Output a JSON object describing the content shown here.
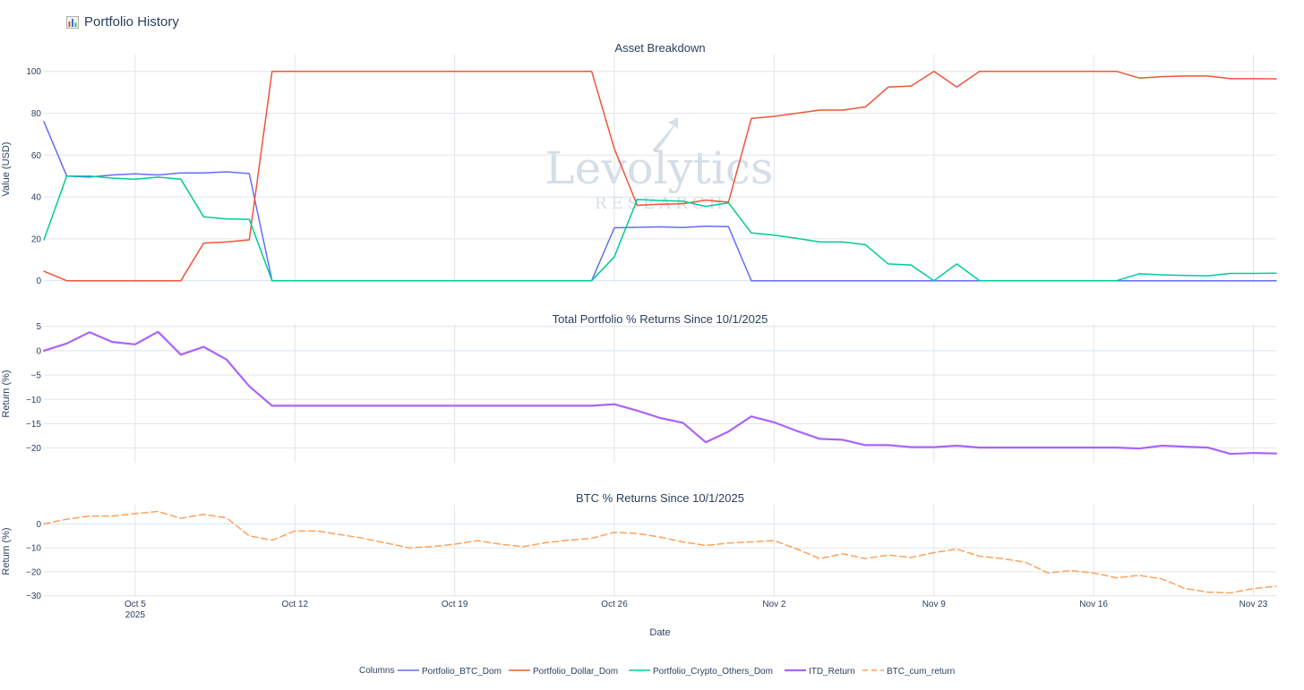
{
  "page": {
    "title": "Portfolio History",
    "icon": "bar-chart-icon"
  },
  "watermark": {
    "main": "Levolytics",
    "sub": "RESEARCH"
  },
  "legend": {
    "title": "Columns"
  },
  "x_axis": {
    "title": "Date",
    "range": [
      "2025-10-01",
      "2025-11-24"
    ],
    "ticks": [
      {
        "date": "2025-10-05",
        "label": "Oct 5",
        "sub": "2025"
      },
      {
        "date": "2025-10-12",
        "label": "Oct 12",
        "sub": ""
      },
      {
        "date": "2025-10-19",
        "label": "Oct 19",
        "sub": ""
      },
      {
        "date": "2025-10-26",
        "label": "Oct 26",
        "sub": ""
      },
      {
        "date": "2025-11-02",
        "label": "Nov 2",
        "sub": ""
      },
      {
        "date": "2025-11-09",
        "label": "Nov 9",
        "sub": ""
      },
      {
        "date": "2025-11-16",
        "label": "Nov 16",
        "sub": ""
      },
      {
        "date": "2025-11-23",
        "label": "Nov 23",
        "sub": ""
      }
    ]
  },
  "chart_data": [
    {
      "type": "line",
      "title": "Asset Breakdown",
      "xlabel": "",
      "ylabel": "Value (USD)",
      "ylim": [
        -1,
        108
      ],
      "yticks": [
        0,
        20,
        40,
        60,
        80,
        100
      ],
      "grid": true,
      "legend": "bottom",
      "series": [
        {
          "name": "Portfolio_BTC_Dom",
          "color": "#636efa",
          "dash": "solid",
          "width": 1.5,
          "x": [
            "2025-10-01",
            "2025-10-02",
            "2025-10-03",
            "2025-10-04",
            "2025-10-05",
            "2025-10-06",
            "2025-10-07",
            "2025-10-08",
            "2025-10-09",
            "2025-10-10",
            "2025-10-11",
            "2025-10-25",
            "2025-10-26",
            "2025-10-27",
            "2025-10-28",
            "2025-10-29",
            "2025-10-30",
            "2025-10-31",
            "2025-11-01",
            "2025-11-24"
          ],
          "y": [
            76,
            50,
            49.5,
            50.5,
            51,
            50.5,
            51.5,
            51.5,
            52,
            51.2,
            0,
            0,
            25.3,
            25.5,
            25.7,
            25.4,
            26,
            25.8,
            0,
            0
          ]
        },
        {
          "name": "Portfolio_Dollar_Dom",
          "color": "#ef553b",
          "dash": "solid",
          "width": 1.5,
          "x": [
            "2025-10-01",
            "2025-10-02",
            "2025-10-03",
            "2025-10-04",
            "2025-10-05",
            "2025-10-06",
            "2025-10-07",
            "2025-10-08",
            "2025-10-09",
            "2025-10-10",
            "2025-10-11",
            "2025-10-25",
            "2025-10-26",
            "2025-10-27",
            "2025-10-28",
            "2025-10-29",
            "2025-10-30",
            "2025-10-31",
            "2025-11-01",
            "2025-11-02",
            "2025-11-03",
            "2025-11-04",
            "2025-11-05",
            "2025-11-06",
            "2025-11-07",
            "2025-11-08",
            "2025-11-09",
            "2025-11-10",
            "2025-11-11",
            "2025-11-17",
            "2025-11-18",
            "2025-11-19",
            "2025-11-20",
            "2025-11-21",
            "2025-11-22",
            "2025-11-23",
            "2025-11-24"
          ],
          "y": [
            4.5,
            0,
            0,
            0,
            0,
            0,
            0,
            18,
            18.5,
            19.5,
            100,
            100,
            63,
            36,
            36.5,
            36.8,
            38.5,
            37.5,
            77.5,
            78.5,
            80,
            81.5,
            81.5,
            83,
            92.5,
            93,
            100,
            92.5,
            100,
            100,
            96.8,
            97.5,
            97.8,
            97.8,
            96.5,
            96.5,
            96.4
          ]
        },
        {
          "name": "Portfolio_Crypto_Others_Dom",
          "color": "#00cc96",
          "dash": "solid",
          "width": 1.5,
          "x": [
            "2025-10-01",
            "2025-10-02",
            "2025-10-03",
            "2025-10-04",
            "2025-10-05",
            "2025-10-06",
            "2025-10-07",
            "2025-10-08",
            "2025-10-09",
            "2025-10-10",
            "2025-10-11",
            "2025-10-25",
            "2025-10-26",
            "2025-10-27",
            "2025-10-28",
            "2025-10-29",
            "2025-10-30",
            "2025-10-31",
            "2025-11-01",
            "2025-11-02",
            "2025-11-03",
            "2025-11-04",
            "2025-11-05",
            "2025-11-06",
            "2025-11-07",
            "2025-11-08",
            "2025-11-09",
            "2025-11-10",
            "2025-11-11",
            "2025-11-17",
            "2025-11-18",
            "2025-11-19",
            "2025-11-20",
            "2025-11-21",
            "2025-11-22",
            "2025-11-23",
            "2025-11-24"
          ],
          "y": [
            19.5,
            50,
            50,
            49,
            48.5,
            49.5,
            48.5,
            30.5,
            29.5,
            29.3,
            0,
            0,
            11.5,
            38.8,
            38.3,
            38,
            35.5,
            37.2,
            22.8,
            21.8,
            20.2,
            18.5,
            18.5,
            17.2,
            8,
            7.5,
            0,
            8,
            0,
            0,
            3.3,
            2.8,
            2.5,
            2.3,
            3.5,
            3.5,
            3.6
          ]
        }
      ]
    },
    {
      "type": "line",
      "title": "Total Portfolio % Returns Since 10/1/2025",
      "xlabel": "",
      "ylabel": "Return (%)",
      "ylim": [
        -23,
        5.5
      ],
      "yticks": [
        5,
        0,
        -5,
        -10,
        -15,
        -20
      ],
      "grid": true,
      "series": [
        {
          "name": "ITD_Return",
          "color": "#ab63fa",
          "dash": "solid",
          "width": 2.2,
          "x": [
            "2025-10-01",
            "2025-10-02",
            "2025-10-03",
            "2025-10-04",
            "2025-10-05",
            "2025-10-06",
            "2025-10-07",
            "2025-10-08",
            "2025-10-09",
            "2025-10-10",
            "2025-10-11",
            "2025-10-25",
            "2025-10-26",
            "2025-10-27",
            "2025-10-28",
            "2025-10-29",
            "2025-10-30",
            "2025-10-31",
            "2025-11-01",
            "2025-11-02",
            "2025-11-03",
            "2025-11-04",
            "2025-11-05",
            "2025-11-06",
            "2025-11-07",
            "2025-11-08",
            "2025-11-09",
            "2025-11-10",
            "2025-11-11",
            "2025-11-17",
            "2025-11-18",
            "2025-11-19",
            "2025-11-20",
            "2025-11-21",
            "2025-11-22",
            "2025-11-23",
            "2025-11-24"
          ],
          "y": [
            0,
            1.5,
            3.8,
            1.8,
            1.3,
            3.9,
            -0.8,
            0.8,
            -1.8,
            -7.3,
            -11.3,
            -11.3,
            -11,
            -12.3,
            -13.8,
            -14.8,
            -18.8,
            -16.6,
            -13.5,
            -14.7,
            -16.5,
            -18.1,
            -18.3,
            -19.4,
            -19.4,
            -19.8,
            -19.8,
            -19.5,
            -19.9,
            -19.9,
            -20.1,
            -19.5,
            -19.7,
            -19.9,
            -21.2,
            -21,
            -21.1
          ]
        }
      ]
    },
    {
      "type": "line",
      "title": "BTC % Returns Since 10/1/2025",
      "xlabel": "Date",
      "ylabel": "Return (%)",
      "ylim": [
        -30.5,
        8
      ],
      "yticks": [
        0,
        -10,
        -20,
        -30
      ],
      "grid": true,
      "series": [
        {
          "name": "BTC_cum_return",
          "color": "#ffa15a",
          "dash": "dashed",
          "width": 1.5,
          "x": [
            "2025-10-01",
            "2025-10-02",
            "2025-10-03",
            "2025-10-04",
            "2025-10-05",
            "2025-10-06",
            "2025-10-07",
            "2025-10-08",
            "2025-10-09",
            "2025-10-10",
            "2025-10-11",
            "2025-10-12",
            "2025-10-13",
            "2025-10-14",
            "2025-10-15",
            "2025-10-16",
            "2025-10-17",
            "2025-10-18",
            "2025-10-19",
            "2025-10-20",
            "2025-10-21",
            "2025-10-22",
            "2025-10-23",
            "2025-10-24",
            "2025-10-25",
            "2025-10-26",
            "2025-10-27",
            "2025-10-28",
            "2025-10-29",
            "2025-10-30",
            "2025-10-31",
            "2025-11-01",
            "2025-11-02",
            "2025-11-03",
            "2025-11-04",
            "2025-11-05",
            "2025-11-06",
            "2025-11-07",
            "2025-11-08",
            "2025-11-09",
            "2025-11-10",
            "2025-11-11",
            "2025-11-12",
            "2025-11-13",
            "2025-11-14",
            "2025-11-15",
            "2025-11-16",
            "2025-11-17",
            "2025-11-18",
            "2025-11-19",
            "2025-11-20",
            "2025-11-21",
            "2025-11-22",
            "2025-11-23",
            "2025-11-24"
          ],
          "y": [
            0,
            2,
            3.3,
            3.3,
            4.3,
            5.2,
            2.3,
            4,
            2.5,
            -5,
            -6.8,
            -3,
            -3,
            -4.5,
            -6,
            -8,
            -10,
            -9.5,
            -8.5,
            -7,
            -8.5,
            -9.5,
            -7.8,
            -6.8,
            -6,
            -3.5,
            -4,
            -5.5,
            -7.5,
            -9,
            -8,
            -7.5,
            -7,
            -10.5,
            -14.5,
            -12.5,
            -14.5,
            -13,
            -14,
            -12,
            -10.5,
            -13.5,
            -14.5,
            -16,
            -20.5,
            -19.5,
            -20.5,
            -22.5,
            -21.5,
            -23,
            -27,
            -28.5,
            -28.8,
            -27,
            -26
          ]
        }
      ]
    }
  ]
}
